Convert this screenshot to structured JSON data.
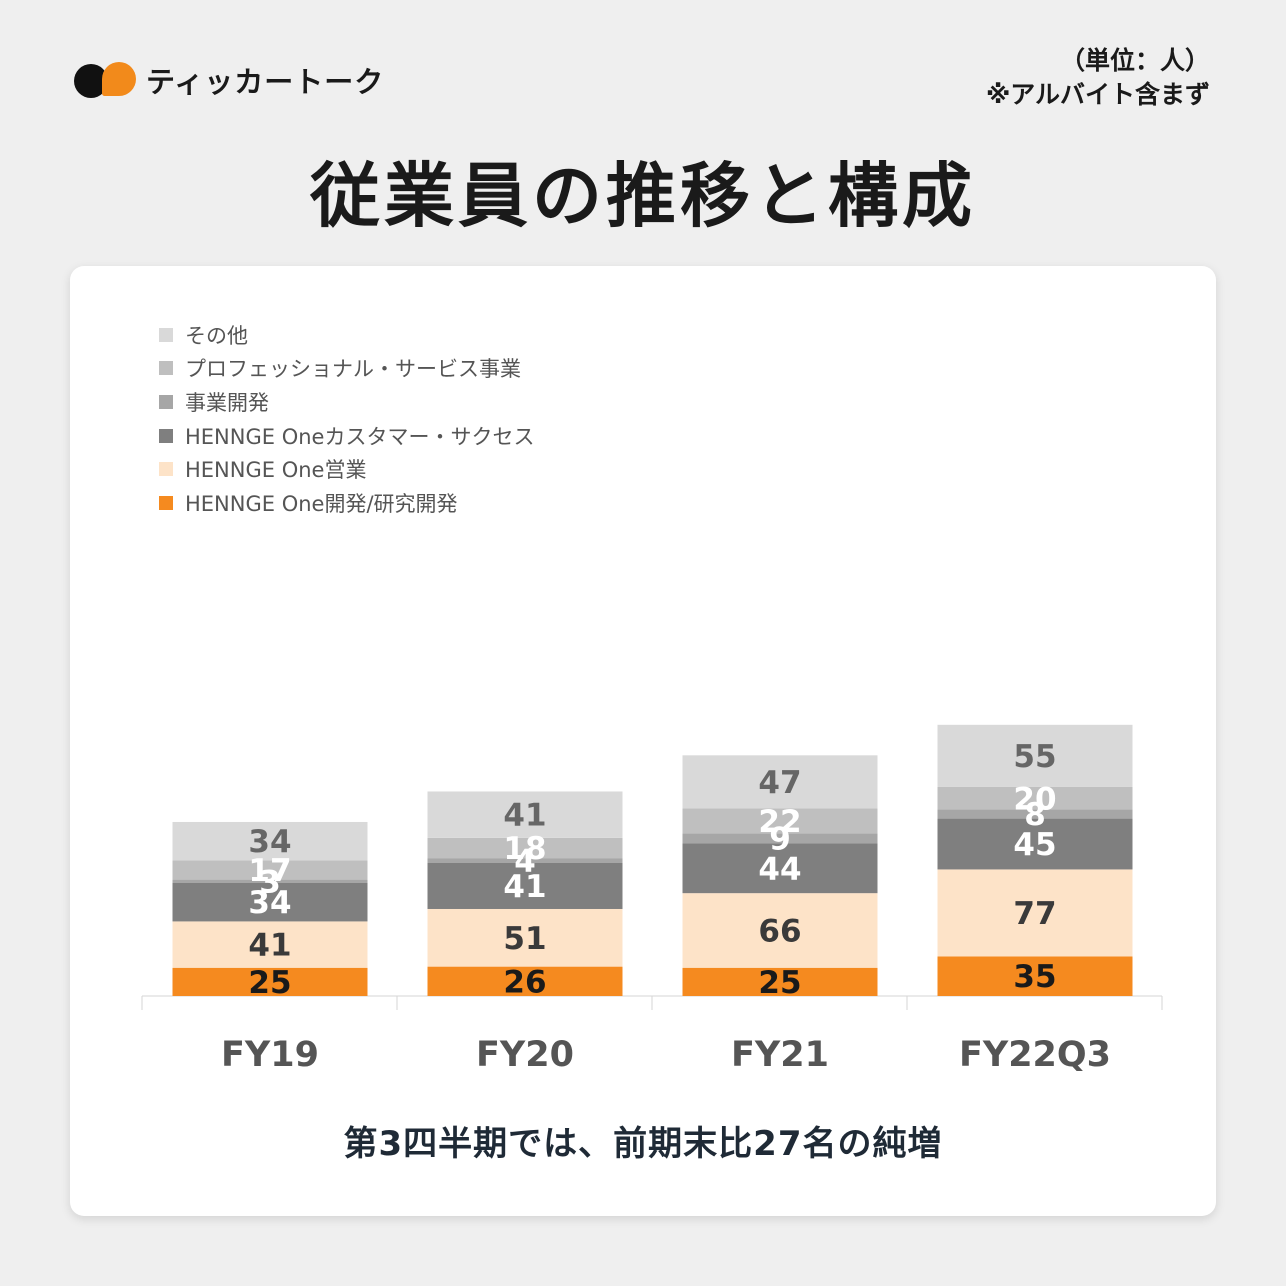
{
  "brand": {
    "name": "ティッカートーク",
    "colors": {
      "black": "#111111",
      "orange": "#f28a1b"
    }
  },
  "unit_note": {
    "line1": "（単位：人）",
    "line2": "※アルバイト含まず"
  },
  "page_title": "従業員の推移と構成",
  "caption": "第3四半期では、前期末比27名の純増",
  "chart_data": {
    "type": "bar",
    "stacked": true,
    "title": "",
    "xlabel": "",
    "ylabel": "",
    "ylim": [
      0,
      300
    ],
    "categories": [
      "FY19",
      "FY20",
      "FY21",
      "FY22Q3"
    ],
    "legend_position": "top-left",
    "series": [
      {
        "name": "HENNGE One開発/研究開発",
        "color": "#f58a1f",
        "label_color": "#1a1a1a",
        "values": [
          25,
          26,
          25,
          35
        ]
      },
      {
        "name": "HENNGE One営業",
        "color": "#fde3c8",
        "label_color": "#3a3a3a",
        "values": [
          41,
          51,
          66,
          77
        ]
      },
      {
        "name": "HENNGE Oneカスタマー・サクセス",
        "color": "#7f7f7f",
        "label_color": "#ffffff",
        "values": [
          34,
          41,
          44,
          45
        ]
      },
      {
        "name": "事業開発",
        "color": "#a6a6a6",
        "label_color": "#ffffff",
        "values": [
          3,
          4,
          9,
          8
        ]
      },
      {
        "name": "プロフェッショナル・サービス事業",
        "color": "#bfbfbf",
        "label_color": "#ffffff",
        "values": [
          17,
          18,
          22,
          20
        ]
      },
      {
        "name": "その他",
        "color": "#d9d9d9",
        "label_color": "#666666",
        "values": [
          34,
          41,
          47,
          55
        ]
      }
    ],
    "legend_order": [
      "その他",
      "プロフェッショナル・サービス事業",
      "事業開発",
      "HENNGE Oneカスタマー・サクセス",
      "HENNGE One営業",
      "HENNGE One開発/研究開発"
    ]
  }
}
